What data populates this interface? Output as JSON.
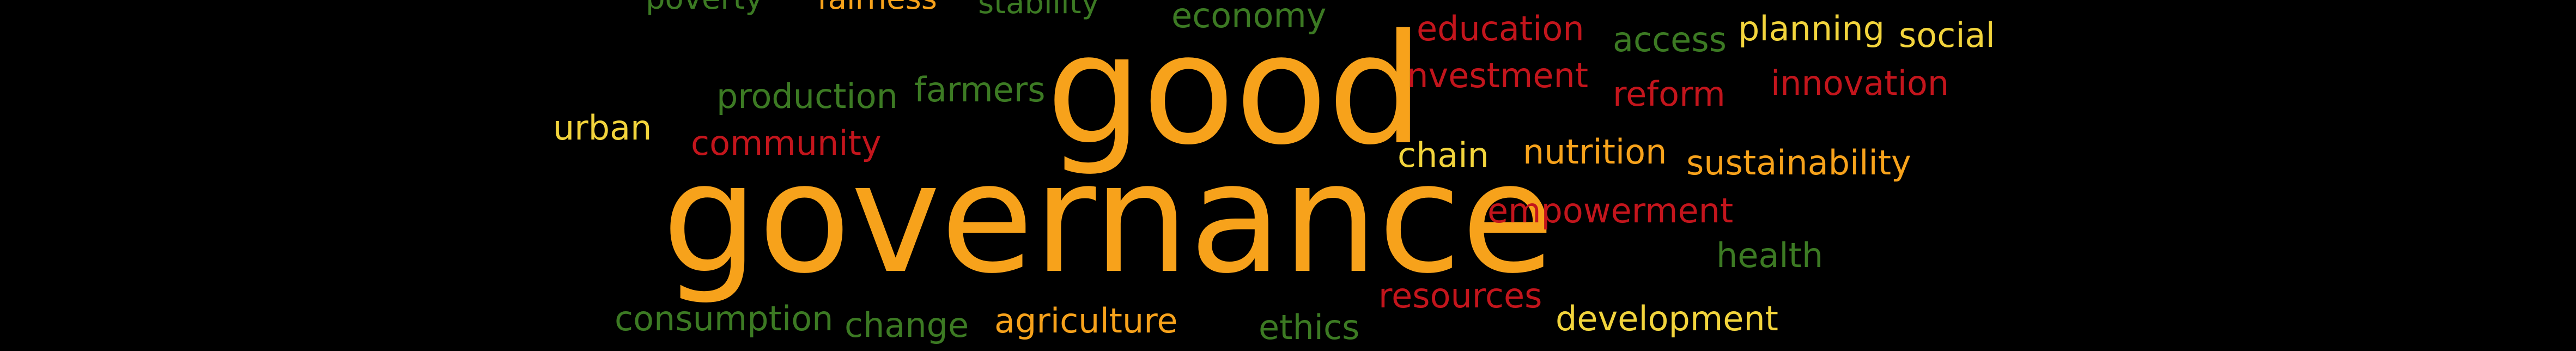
{
  "palette": {
    "background": "#000000",
    "orange": "#f7a21b",
    "yellow": "#f2d43c",
    "red": "#c3151c",
    "green": "#3c7a23"
  },
  "words": {
    "good": "good",
    "governance": "governance",
    "poverty": "poverty",
    "fairness": "fairness",
    "stability": "stability",
    "economy": "economy",
    "education": "education",
    "access": "access",
    "planning": "planning",
    "social": "social",
    "investment": "investment",
    "reform": "reform",
    "innovation": "innovation",
    "production": "production",
    "farmers": "farmers",
    "urban": "urban",
    "community": "community",
    "chain": "chain",
    "nutrition": "nutrition",
    "sustainability": "sustainability",
    "empowerment": "empowerment",
    "health": "health",
    "resources": "resources",
    "consumption": "consumption",
    "change": "change",
    "agriculture": "agriculture",
    "ethics": "ethics",
    "development": "development"
  }
}
